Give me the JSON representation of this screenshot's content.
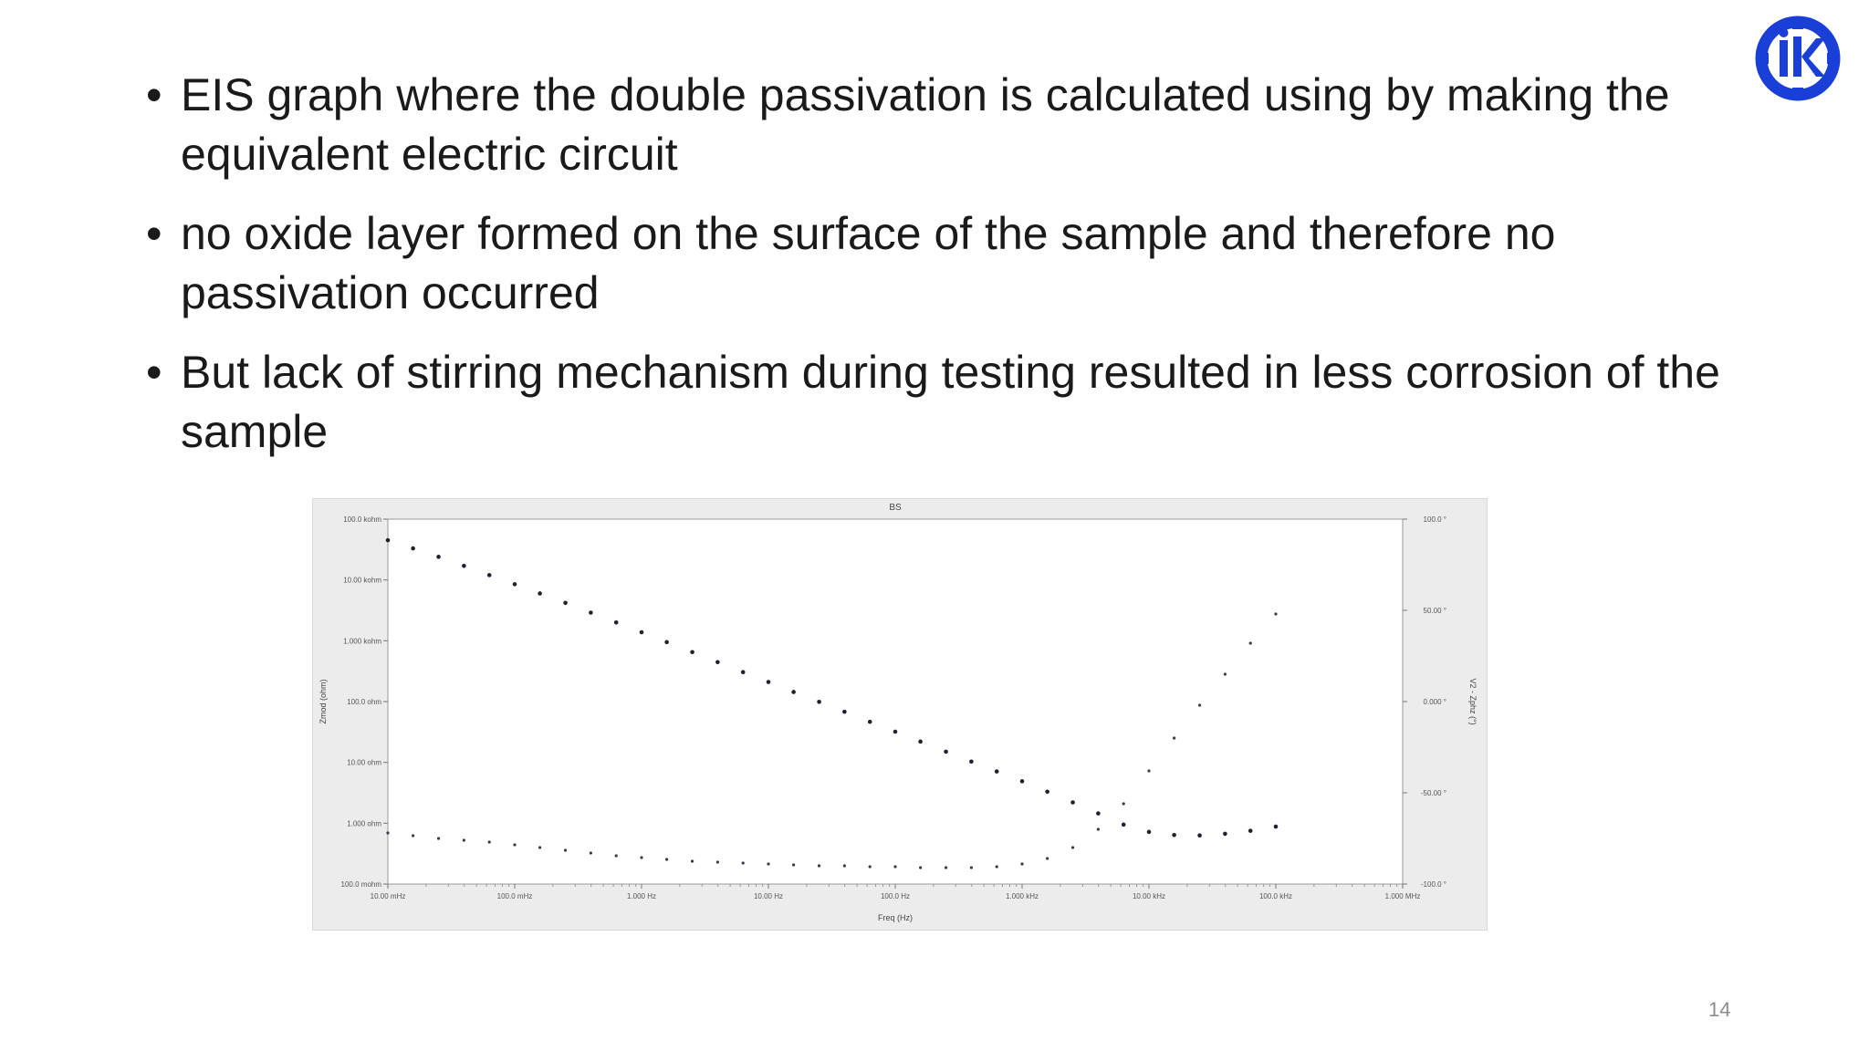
{
  "slide": {
    "bullets": [
      "EIS graph where the double passivation is calculated using by making the equivalent electric circuit",
      "no oxide layer formed on the surface of the sample and therefore no passivation occurred",
      "But lack of  stirring mechanism during testing resulted in less corrosion of the sample"
    ],
    "page_number": "14",
    "logo_icon": "iki-logo-icon",
    "logo_color": "#1a3fd6"
  },
  "chart_data": {
    "type": "scatter",
    "title": "BS",
    "xlabel": "Freq (Hz)",
    "ylabel": "Zmod (ohm)",
    "y2label": "V2 - Zphz (°)",
    "x_scale": "log",
    "y_scale": "log",
    "xlim": [
      0.01,
      1000000
    ],
    "ylim": [
      0.1,
      100000
    ],
    "y2lim": [
      -100,
      100
    ],
    "x_ticks": [
      {
        "value": 0.01,
        "label": "10.00 mHz"
      },
      {
        "value": 0.1,
        "label": "100.0 mHz"
      },
      {
        "value": 1,
        "label": "1.000 Hz"
      },
      {
        "value": 10,
        "label": "10.00 Hz"
      },
      {
        "value": 100,
        "label": "100.0 Hz"
      },
      {
        "value": 1000,
        "label": "1.000 kHz"
      },
      {
        "value": 10000,
        "label": "10.00 kHz"
      },
      {
        "value": 100000,
        "label": "100.0 kHz"
      },
      {
        "value": 1000000,
        "label": "1.000 MHz"
      }
    ],
    "y_ticks": [
      {
        "value": 100000,
        "label": "100.0 kohm"
      },
      {
        "value": 10000,
        "label": "10.00 kohm"
      },
      {
        "value": 1000,
        "label": "1.000 kohm"
      },
      {
        "value": 100,
        "label": "100.0 ohm"
      },
      {
        "value": 10,
        "label": "10.00 ohm"
      },
      {
        "value": 1,
        "label": "1.000 ohm"
      },
      {
        "value": 0.1,
        "label": "100.0 mohm"
      }
    ],
    "y2_ticks": [
      {
        "value": 100,
        "label": "100.0 °"
      },
      {
        "value": 50,
        "label": "50.00 °"
      },
      {
        "value": 0,
        "label": "0.000 °"
      },
      {
        "value": -50,
        "label": "-50.00 °"
      },
      {
        "value": -100,
        "label": "-100.0 °"
      }
    ],
    "grid": false,
    "series": [
      {
        "axis": "y",
        "marker_color": "#202030",
        "x": [
          0.01,
          0.0158,
          0.0251,
          0.0398,
          0.0631,
          0.1,
          0.158,
          0.251,
          0.398,
          0.631,
          1,
          1.58,
          2.51,
          3.98,
          6.31,
          10,
          15.8,
          25.1,
          39.8,
          63.1,
          100,
          158,
          251,
          398,
          631,
          1000,
          1580,
          2510,
          3980,
          6310,
          10000,
          15800,
          25100,
          39800,
          63100,
          100000
        ],
        "values": [
          45000,
          33000,
          24000,
          17000,
          12000,
          8500,
          6000,
          4200,
          2900,
          2000,
          1380,
          950,
          650,
          445,
          305,
          210,
          144,
          99,
          68,
          46.5,
          32,
          22,
          15,
          10.3,
          7.1,
          4.9,
          3.3,
          2.2,
          1.45,
          0.95,
          0.72,
          0.64,
          0.63,
          0.67,
          0.75,
          0.88
        ]
      },
      {
        "axis": "y2",
        "marker_color": "#3a3a48",
        "x": [
          0.01,
          0.0158,
          0.0251,
          0.0398,
          0.0631,
          0.1,
          0.158,
          0.251,
          0.398,
          0.631,
          1,
          1.58,
          2.51,
          3.98,
          6.31,
          10,
          15.8,
          25.1,
          39.8,
          63.1,
          100,
          158,
          251,
          398,
          631,
          1000,
          1580,
          2510,
          3980,
          6310,
          10000,
          15800,
          25100,
          39800,
          63100,
          100000
        ],
        "values": [
          -72,
          -73.5,
          -75,
          -76,
          -77,
          -78.5,
          -80,
          -81.5,
          -83,
          -84.5,
          -85.5,
          -86.5,
          -87.5,
          -88,
          -88.5,
          -89,
          -89.5,
          -90,
          -90,
          -90.5,
          -90.5,
          -91,
          -91,
          -91,
          -90.5,
          -89,
          -86,
          -80,
          -70,
          -56,
          -38,
          -20,
          -2,
          15,
          32,
          48
        ]
      }
    ]
  }
}
